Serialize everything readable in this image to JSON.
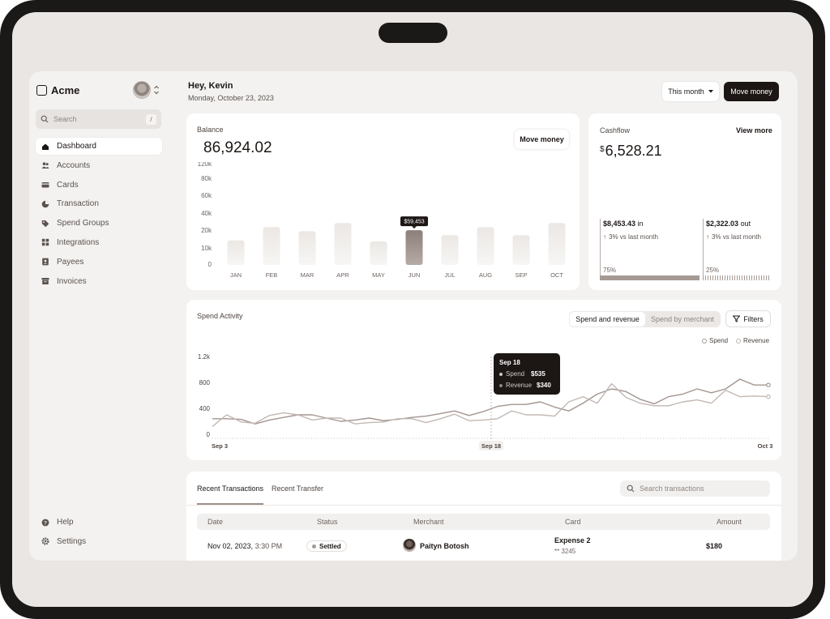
{
  "app": {
    "name": "Acme"
  },
  "sidebar": {
    "search_placeholder": "Search",
    "search_shortcut": "/",
    "items": [
      {
        "label": "Dashboard",
        "icon": "home-icon",
        "active": true
      },
      {
        "label": "Accounts",
        "icon": "users-icon"
      },
      {
        "label": "Cards",
        "icon": "card-icon"
      },
      {
        "label": "Transaction",
        "icon": "pie-icon"
      },
      {
        "label": "Spend Groups",
        "icon": "tag-icon"
      },
      {
        "label": "Integrations",
        "icon": "grid-icon"
      },
      {
        "label": "Payees",
        "icon": "contact-icon"
      },
      {
        "label": "Invoices",
        "icon": "archive-icon"
      }
    ],
    "bottom": [
      {
        "label": "Help",
        "icon": "help-icon"
      },
      {
        "label": "Settings",
        "icon": "gear-icon"
      }
    ]
  },
  "header": {
    "greeting": "Hey, Kevin",
    "date": "Monday, October 23, 2023",
    "period_label": "This month",
    "move_money_label": "Move money"
  },
  "balance": {
    "title": "Balance",
    "amount": "86,924.02",
    "button_label": "Move money",
    "tooltip": "$59,453"
  },
  "cashflow": {
    "title": "Cashflow",
    "view_more": "View more",
    "currency": "$",
    "amount": "6,528.21",
    "in": {
      "amount": "$8,453.43",
      "label": "in",
      "change": "3% vs last month",
      "pct": "75%"
    },
    "out": {
      "amount": "$2,322.03",
      "label": "out",
      "change": "3% vs last month",
      "pct": "25%"
    }
  },
  "spend": {
    "title": "Spend Activity",
    "tab_active": "Spend and revenue",
    "tab_inactive": "Spend by merchant",
    "filters_label": "Filters",
    "legend": [
      "Spend",
      "Revenue"
    ],
    "tooltip": {
      "date": "Sep 18",
      "spend_label": "Spend",
      "spend_value": "$535",
      "revenue_label": "Revenue",
      "revenue_value": "$340"
    }
  },
  "transactions": {
    "tab_active": "Recent Transactions",
    "tab_inactive": "Recent Transfer",
    "search_placeholder": "Search transactions",
    "columns": [
      "Date",
      "Status",
      "Merchant",
      "Card",
      "Amount"
    ],
    "rows": [
      {
        "date": "Nov 02, 2023,",
        "time": "3:30 PM",
        "status": "Settled",
        "merchant": "Paityn Botosh",
        "card": "Expense 2",
        "card_number": "** 3245",
        "amount": "$180"
      }
    ]
  },
  "chart_data": [
    {
      "type": "bar",
      "categories": [
        "JAN",
        "FEB",
        "MAR",
        "APR",
        "MAY",
        "JUN",
        "JUL",
        "AUG",
        "SEP",
        "OCT"
      ],
      "values": [
        24000,
        37000,
        33000,
        41000,
        23000,
        34000,
        29000,
        37000,
        29000,
        41000
      ],
      "highlight_index": 5,
      "ylim": [
        0,
        120000
      ],
      "yticks": [
        "0",
        "10k",
        "20k",
        "40k",
        "60k",
        "80k",
        "120k"
      ]
    },
    {
      "type": "line",
      "x_labels": [
        "Sep 3",
        "Sep 18",
        "Oct 3"
      ],
      "yticks": [
        "0",
        "400",
        "800",
        "1.2k"
      ],
      "ylim": [
        0,
        1200
      ],
      "series": [
        {
          "name": "Spend",
          "values": [
            240,
            240,
            230,
            160,
            220,
            260,
            300,
            300,
            250,
            200,
            220,
            250,
            210,
            230,
            260,
            280,
            320,
            360,
            290,
            350,
            430,
            460,
            460,
            500,
            420,
            360,
            480,
            620,
            700,
            660,
            540,
            470,
            580,
            620,
            700,
            640,
            700,
            850,
            760,
            760
          ]
        },
        {
          "name": "Revenue",
          "values": [
            120,
            300,
            190,
            170,
            290,
            330,
            300,
            220,
            250,
            250,
            160,
            180,
            190,
            240,
            240,
            180,
            240,
            310,
            210,
            220,
            240,
            360,
            300,
            300,
            280,
            500,
            580,
            480,
            780,
            570,
            480,
            440,
            440,
            500,
            530,
            480,
            680,
            580,
            590,
            580
          ]
        }
      ]
    }
  ]
}
